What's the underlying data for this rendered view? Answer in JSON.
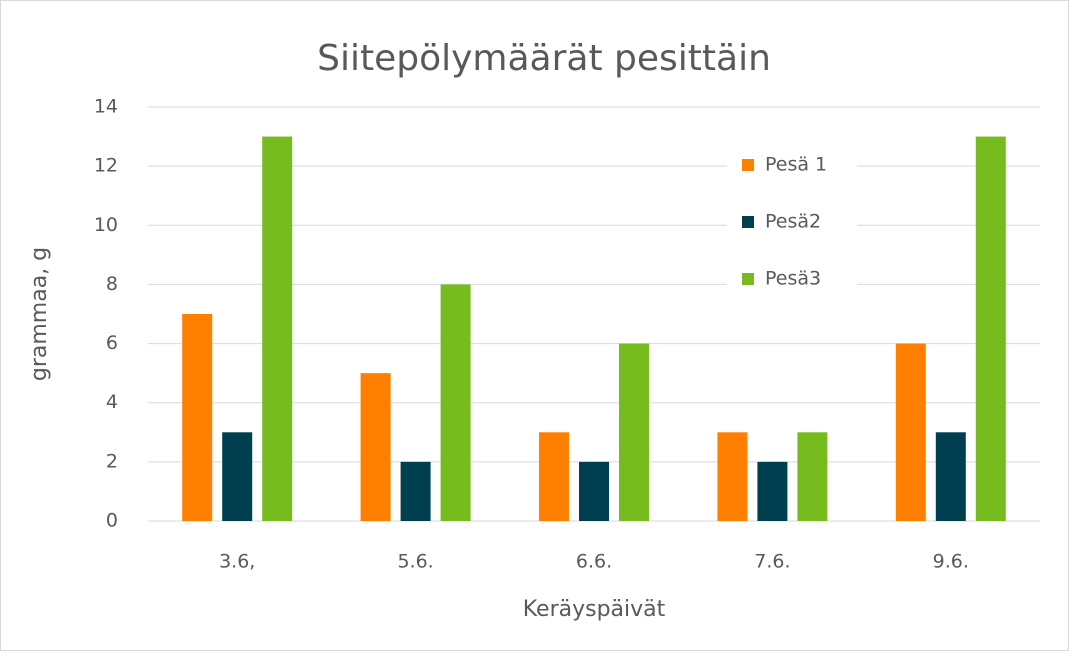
{
  "chart_data": {
    "type": "bar",
    "title": "Siitepölymäärät pesittäin",
    "x_label": "Keräyspäivät",
    "y_label": "grammaa, g",
    "categories": [
      "3.6,",
      "5.6.",
      "6.6.",
      "7.6.",
      "9.6."
    ],
    "series": [
      {
        "name": "Pesä 1",
        "color": "#ff8000",
        "values": [
          7,
          5,
          3,
          3,
          6
        ]
      },
      {
        "name": "Pesä2",
        "color": "#003f4f",
        "values": [
          3,
          2,
          2,
          2,
          3
        ]
      },
      {
        "name": "Pesä3",
        "color": "#77bc1f",
        "values": [
          13,
          8,
          6,
          3,
          13
        ]
      }
    ],
    "ylim": [
      0,
      14
    ],
    "yticks": [
      0,
      2,
      4,
      6,
      8,
      10,
      12,
      14
    ],
    "grid": true,
    "legend": "upper right"
  }
}
